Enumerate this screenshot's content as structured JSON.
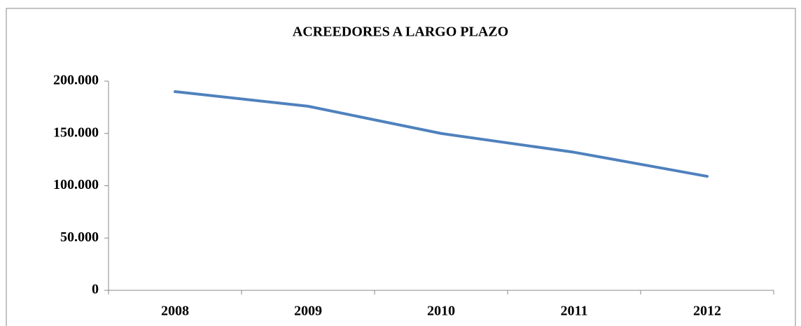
{
  "chart_data": {
    "type": "line",
    "title": "ACREEDORES A LARGO PLAZO",
    "categories": [
      "2008",
      "2009",
      "2010",
      "2011",
      "2012"
    ],
    "series": [
      {
        "name": "Acreedores a largo plazo",
        "color": "#4f81bd",
        "values": [
          190000,
          176000,
          150000,
          132000,
          109000
        ]
      }
    ],
    "ylim": [
      0,
      200000
    ],
    "yticks": [
      0,
      {
        "value": 50000,
        "label": "50.000"
      },
      {
        "value": 100000,
        "label": "100.000"
      },
      {
        "value": 150000,
        "label": "150.000"
      },
      {
        "value": 200000,
        "label": "200.000"
      }
    ],
    "grid": false
  }
}
